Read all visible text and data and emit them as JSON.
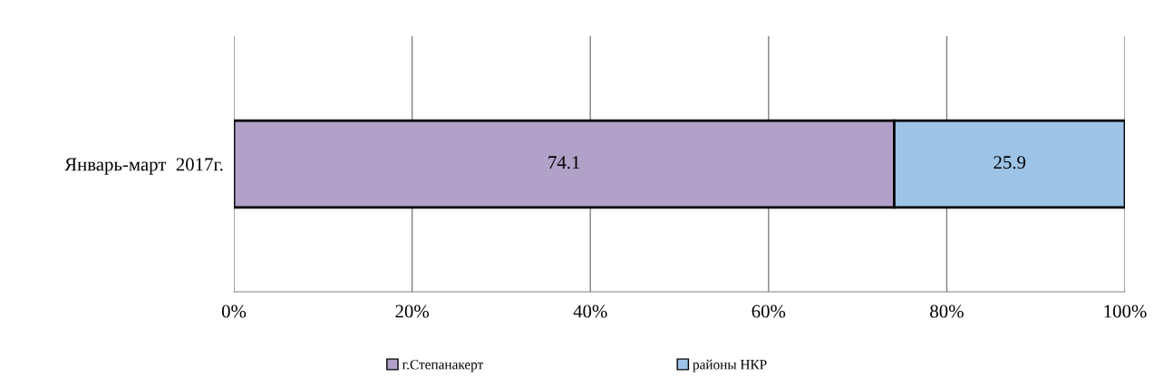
{
  "chart_data": {
    "type": "bar",
    "orientation": "horizontal",
    "stacked": true,
    "categories": [
      "Январь-март  2017г."
    ],
    "series": [
      {
        "name": "г.Степанакерт",
        "color": "#b1a0c7",
        "values": [
          74.1
        ]
      },
      {
        "name": "районы НКР",
        "color": "#9dc3e6",
        "values": [
          25.9
        ]
      }
    ],
    "xlim": [
      0,
      100
    ],
    "xticks": [
      {
        "value": 0,
        "label": "0%"
      },
      {
        "value": 20,
        "label": "20%"
      },
      {
        "value": 40,
        "label": "40%"
      },
      {
        "value": 60,
        "label": "60%"
      },
      {
        "value": 80,
        "label": "80%"
      },
      {
        "value": 100,
        "label": "100%"
      }
    ],
    "grid": "x",
    "legend": "bottom",
    "data_labels": true
  }
}
